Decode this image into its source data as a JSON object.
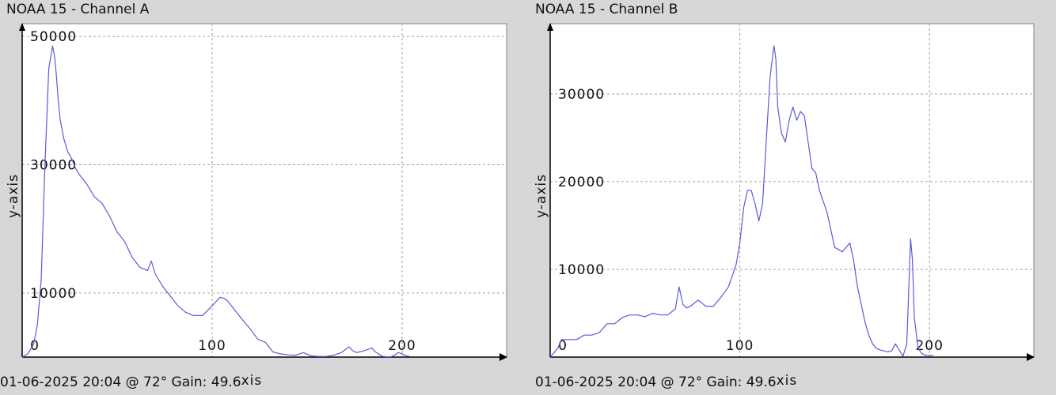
{
  "panels": [
    {
      "title": "NOAA 15 - Channel A",
      "footer_main": "01-06-2025 20:04 @ 72° Gain: 49.6",
      "footer_axis": "xis"
    },
    {
      "title": "NOAA 15 - Channel B",
      "footer_main": "01-06-2025 20:04 @ 72° Gain: 49.6",
      "footer_axis": "xis"
    }
  ],
  "colors": {
    "background": "#d7d7d7",
    "plot_background": "#ffffff",
    "grid": "#a0a0a0",
    "line": "#5b5bd6",
    "axis": "#000000"
  },
  "chart_data": [
    {
      "type": "line",
      "title": "NOAA 15 - Channel A",
      "xlabel": "xis",
      "ylabel": "y-axis",
      "xlim": [
        0,
        255
      ],
      "ylim": [
        0,
        52000
      ],
      "xticks": [
        0,
        100,
        200
      ],
      "yticks": [
        10000,
        30000,
        50000
      ],
      "grid": true,
      "series": [
        {
          "x": [
            0,
            3,
            6,
            8,
            10,
            12,
            14,
            16,
            17,
            18,
            19,
            20,
            22,
            24,
            26,
            28,
            30,
            34,
            38,
            42,
            46,
            50,
            54,
            58,
            62,
            66,
            68,
            70,
            74,
            78,
            82,
            86,
            90,
            95,
            100,
            104,
            106,
            108,
            112,
            116,
            120,
            124,
            128,
            132,
            136,
            140,
            144,
            148,
            152,
            156,
            160,
            164,
            168,
            172,
            174,
            176,
            180,
            184,
            186,
            188,
            190,
            192,
            194,
            196,
            198,
            200,
            202,
            204
          ],
          "y": [
            0,
            500,
            2000,
            5000,
            12000,
            30000,
            45000,
            48500,
            47000,
            44000,
            40000,
            37000,
            34000,
            32000,
            31000,
            29500,
            28500,
            27000,
            25000,
            24000,
            22000,
            19500,
            18000,
            15500,
            14000,
            13500,
            15000,
            13000,
            11000,
            9500,
            8000,
            7000,
            6500,
            6500,
            8000,
            9300,
            9200,
            8800,
            7300,
            5800,
            4400,
            2800,
            2300,
            800,
            500,
            350,
            300,
            700,
            200,
            100,
            100,
            300,
            700,
            1600,
            1000,
            700,
            1000,
            1400,
            800,
            400,
            100,
            50,
            50,
            300,
            700,
            500,
            200,
            100
          ]
        }
      ]
    },
    {
      "type": "line",
      "title": "NOAA 15 - Channel B",
      "xlabel": "xis",
      "ylabel": "y-axis",
      "xlim": [
        0,
        255
      ],
      "ylim": [
        0,
        38000
      ],
      "xticks": [
        0,
        100,
        200
      ],
      "yticks": [
        10000,
        20000,
        30000
      ],
      "grid": true,
      "series": [
        {
          "x": [
            0,
            4,
            6,
            10,
            14,
            18,
            22,
            26,
            30,
            34,
            38,
            42,
            46,
            50,
            54,
            58,
            62,
            66,
            68,
            70,
            72,
            74,
            78,
            82,
            86,
            90,
            94,
            98,
            100,
            102,
            104,
            106,
            108,
            110,
            112,
            114,
            116,
            118,
            119,
            120,
            122,
            124,
            126,
            128,
            130,
            132,
            134,
            136,
            138,
            140,
            142,
            146,
            150,
            154,
            156,
            158,
            160,
            162,
            164,
            166,
            168,
            170,
            172,
            174,
            176,
            178,
            180,
            182,
            184,
            186,
            188,
            190,
            191,
            192,
            194,
            196,
            198,
            202
          ],
          "y": [
            0,
            1000,
            2000,
            2000,
            2000,
            2500,
            2500,
            2800,
            3800,
            3800,
            4500,
            4800,
            4800,
            4600,
            5000,
            4800,
            4800,
            5500,
            8000,
            6000,
            5600,
            5800,
            6500,
            5800,
            5800,
            6800,
            8000,
            10500,
            13000,
            17000,
            19000,
            19000,
            17500,
            15500,
            17500,
            25000,
            32000,
            35500,
            34000,
            28500,
            25500,
            24500,
            27000,
            28500,
            27000,
            28000,
            27500,
            24500,
            21500,
            21000,
            19000,
            16500,
            12500,
            12000,
            12500,
            13000,
            11000,
            8000,
            6000,
            4000,
            2500,
            1500,
            1000,
            800,
            700,
            600,
            700,
            1500,
            800,
            100,
            1500,
            13500,
            11000,
            4500,
            1000,
            400,
            200,
            200
          ]
        }
      ]
    }
  ]
}
